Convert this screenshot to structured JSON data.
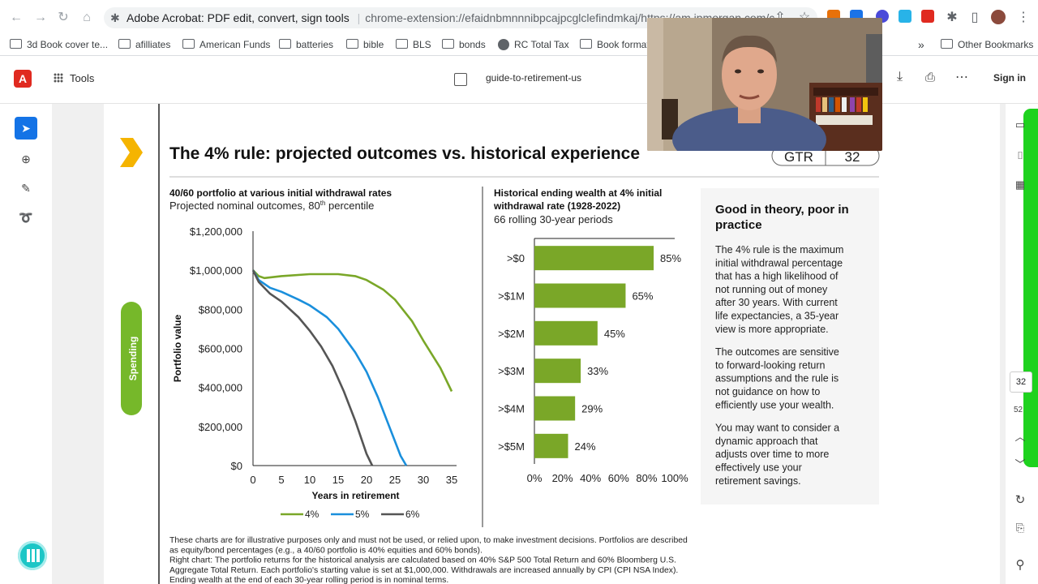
{
  "browser": {
    "tab_title": "Adobe Acrobat: PDF edit, convert, sign tools",
    "url": "chrome-extension://efaidnbmnnnibpcajpcglclefindmkaj/https://am.jpmorgan.com/c...",
    "bookmarks": [
      "3d Book cover te...",
      "afilliates",
      "American Funds",
      "batteries",
      "bible",
      "BLS",
      "bonds",
      "RC Total Tax",
      "Book format"
    ],
    "overflow": "»",
    "other_bookmarks": "Other Bookmarks"
  },
  "acrobat": {
    "tools_label": "Tools",
    "file_name": "guide-to-retirement-us",
    "sign_in": "Sign in",
    "page_current": "32",
    "page_total": "52"
  },
  "slide": {
    "title": "The 4% rule: projected outcomes vs. historical experience",
    "badge_prefix": "GTR",
    "badge_page": "32",
    "side_tab": "Spending",
    "left_chart_title": "40/60 portfolio at various initial withdrawal rates",
    "left_chart_subtitle": "Projected nominal outcomes, 80",
    "left_chart_subtitle_sup": "th",
    "left_chart_subtitle_end": " percentile",
    "right_chart_title_1": "Historical ending wealth at 4% initial",
    "right_chart_title_2": "withdrawal rate (1928-2022)",
    "right_chart_subtitle": "66 rolling 30-year periods",
    "sidebar_heading_1": "Good in theory, poor in",
    "sidebar_heading_2": "practice",
    "sidebar_p1": [
      "The 4% rule is the maximum",
      "initial withdrawal percentage",
      "that has a high likelihood of",
      "not running out of money",
      "after 30 years. With current",
      "life expectancies, a 35-year",
      "view is more appropriate."
    ],
    "sidebar_p2": [
      "The outcomes are sensitive",
      "to forward-looking return",
      "assumptions and the rule is",
      "not guidance on how to",
      "efficiently use your wealth."
    ],
    "sidebar_p3": [
      "You may want to consider a",
      "dynamic approach that",
      "adjusts over time to more",
      "effectively use your",
      "retirement savings."
    ],
    "footnote": [
      "These charts are for illustrative purposes only and must not be used, or relied upon, to make investment decisions. Portfolios are described",
      "as equity/bond percentages (e.g., a 40/60 portfolio is 40% equities and 60% bonds).",
      "Right chart: The portfolio returns for the historical analysis are calculated based on 40% S&P 500 Total Return and 60% Bloomberg U.S.",
      "Aggregate Total Return. Each portfolio's starting value is set at $1,000,000. Withdrawals are increased annually by CPI (CPI NSA Index).",
      "Ending wealth at the end of each 30-year rolling period is in nominal terms."
    ]
  },
  "colors": {
    "green": "#7aa728",
    "blue": "#1a8fdc",
    "gray": "#555555",
    "accent_yellow": "#f5b400",
    "acrobat_red": "#e02a20"
  },
  "chart_data": [
    {
      "type": "line",
      "ylabel": "Portfolio value",
      "xlabel": "Years in retirement",
      "x_ticks": [
        "0",
        "5",
        "10",
        "15",
        "20",
        "25",
        "30",
        "35"
      ],
      "y_ticks": [
        "$0",
        "$200,000",
        "$400,000",
        "$600,000",
        "$800,000",
        "$1,000,000",
        "$1,200,000"
      ],
      "xlim": [
        0,
        35
      ],
      "ylim": [
        0,
        1200000
      ],
      "legend_position": "bottom",
      "series": [
        {
          "name": "4%",
          "color": "#7aa728",
          "x": [
            0,
            1,
            2,
            5,
            10,
            15,
            18,
            20,
            23,
            25,
            28,
            30,
            33,
            35
          ],
          "y": [
            1000000,
            970000,
            960000,
            970000,
            980000,
            980000,
            970000,
            950000,
            900000,
            850000,
            740000,
            640000,
            500000,
            380000
          ]
        },
        {
          "name": "5%",
          "color": "#1a8fdc",
          "x": [
            0,
            1,
            3,
            5,
            8,
            10,
            13,
            15,
            18,
            20,
            22,
            24,
            26,
            27
          ],
          "y": [
            1000000,
            950000,
            910000,
            890000,
            850000,
            820000,
            760000,
            700000,
            580000,
            480000,
            350000,
            200000,
            50000,
            0
          ]
        },
        {
          "name": "6%",
          "color": "#555555",
          "x": [
            0,
            1,
            3,
            5,
            8,
            10,
            12,
            14,
            16,
            18,
            20,
            21
          ],
          "y": [
            1000000,
            940000,
            880000,
            840000,
            760000,
            690000,
            610000,
            510000,
            380000,
            230000,
            60000,
            0
          ]
        }
      ]
    },
    {
      "type": "bar",
      "orientation": "horizontal",
      "categories": [
        ">$0",
        ">$1M",
        ">$2M",
        ">$3M",
        ">$4M",
        ">$5M"
      ],
      "values": [
        85,
        65,
        45,
        33,
        29,
        24
      ],
      "value_labels": [
        "85%",
        "65%",
        "45%",
        "33%",
        "29%",
        "24%"
      ],
      "x_ticks": [
        "0%",
        "20%",
        "40%",
        "60%",
        "80%",
        "100%"
      ],
      "xlim": [
        0,
        100
      ],
      "color": "#7aa728"
    }
  ]
}
